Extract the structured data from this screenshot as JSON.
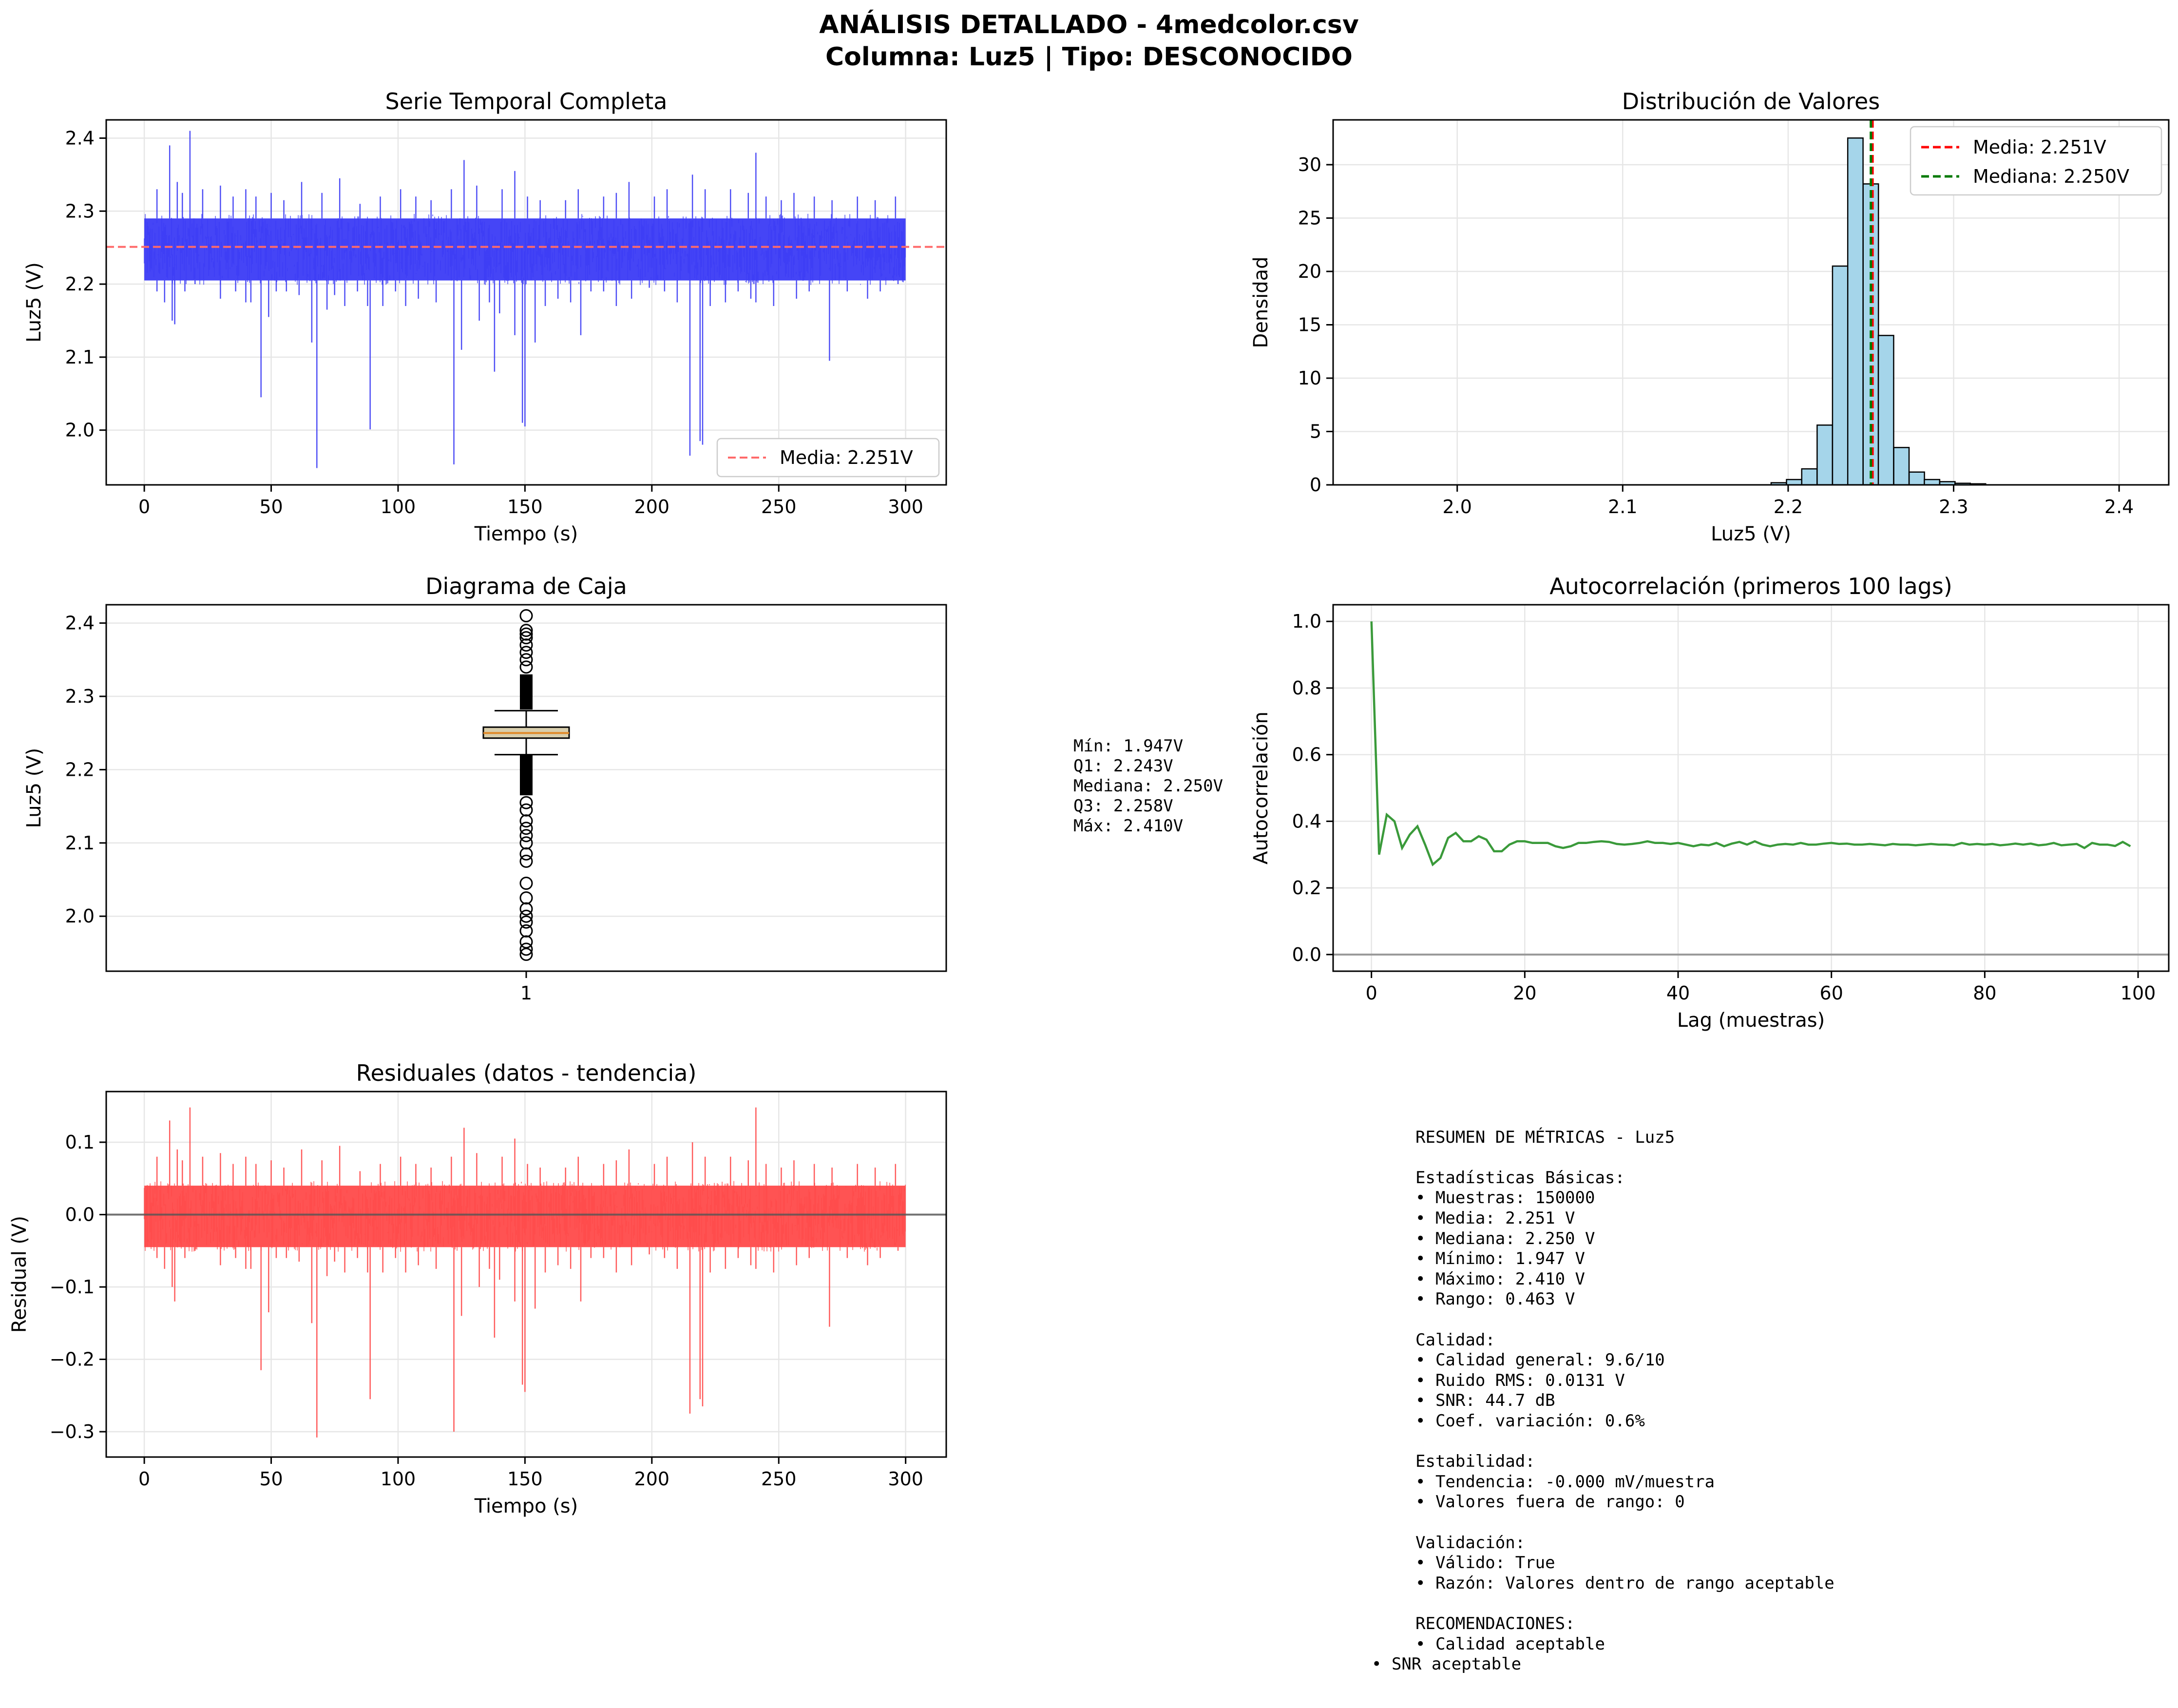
{
  "figure": {
    "title_line1": "ANÁLISIS DETALLADO - 4medcolor.csv",
    "title_line2": "Columna: Luz5 | Tipo: DESCONOCIDO"
  },
  "colors": {
    "series_blue": "#3b3bf5",
    "series_red": "#ff4a4a",
    "acf_green": "#3a9a3a",
    "mean_red": "#ff0000",
    "median_green": "#007a00",
    "hist_fill": "#a5d5ea",
    "box_fill": "#d8ceac",
    "grid": "#e6e6e6"
  },
  "chart_data": [
    {
      "id": "timeseries",
      "type": "line",
      "title": "Serie Temporal Completa",
      "xlabel": "Tiempo (s)",
      "ylabel": "Luz5 (V)",
      "xlim": [
        -15,
        316
      ],
      "ylim": [
        1.925,
        2.425
      ],
      "xticks": [
        0,
        50,
        100,
        150,
        200,
        250,
        300
      ],
      "xtick_labels": [
        "0",
        "50",
        "100",
        "150",
        "200",
        "250",
        "300"
      ],
      "yticks": [
        2.0,
        2.1,
        2.2,
        2.3,
        2.4
      ],
      "ytick_labels": [
        "2.0",
        "2.1",
        "2.2",
        "2.3",
        "2.4"
      ],
      "band": {
        "x_start": 0,
        "x_end": 300,
        "y_low": 2.205,
        "y_high": 2.29
      },
      "spikes_down": [
        [
          2,
          2.205
        ],
        [
          5,
          2.19
        ],
        [
          8,
          2.175
        ],
        [
          11,
          2.15
        ],
        [
          12,
          2.145
        ],
        [
          16,
          2.19
        ],
        [
          20,
          2.2
        ],
        [
          30,
          2.18
        ],
        [
          36,
          2.19
        ],
        [
          40,
          2.175
        ],
        [
          42,
          2.175
        ],
        [
          46,
          2.045
        ],
        [
          49,
          2.155
        ],
        [
          52,
          2.19
        ],
        [
          56,
          2.19
        ],
        [
          61,
          2.185
        ],
        [
          66,
          2.12
        ],
        [
          68,
          1.948
        ],
        [
          72,
          2.165
        ],
        [
          75,
          2.185
        ],
        [
          79,
          2.17
        ],
        [
          84,
          2.19
        ],
        [
          88,
          2.17
        ],
        [
          89,
          2.001
        ],
        [
          94,
          2.17
        ],
        [
          99,
          2.19
        ],
        [
          103,
          2.17
        ],
        [
          108,
          2.18
        ],
        [
          115,
          2.175
        ],
        [
          122,
          1.953
        ],
        [
          125,
          2.11
        ],
        [
          132,
          2.15
        ],
        [
          136,
          2.175
        ],
        [
          138,
          2.08
        ],
        [
          140,
          2.16
        ],
        [
          146,
          2.13
        ],
        [
          149,
          2.01
        ],
        [
          150,
          2.005
        ],
        [
          154,
          2.12
        ],
        [
          158,
          2.17
        ],
        [
          163,
          2.18
        ],
        [
          168,
          2.175
        ],
        [
          172,
          2.13
        ],
        [
          176,
          2.19
        ],
        [
          181,
          2.19
        ],
        [
          186,
          2.17
        ],
        [
          192,
          2.18
        ],
        [
          199,
          2.195
        ],
        [
          205,
          2.19
        ],
        [
          210,
          2.175
        ],
        [
          215,
          1.965
        ],
        [
          219,
          1.985
        ],
        [
          220,
          1.98
        ],
        [
          223,
          2.17
        ],
        [
          229,
          2.175
        ],
        [
          234,
          2.19
        ],
        [
          239,
          2.18
        ],
        [
          241,
          2.175
        ],
        [
          248,
          2.17
        ],
        [
          257,
          2.18
        ],
        [
          262,
          2.19
        ],
        [
          270,
          2.095
        ],
        [
          277,
          2.19
        ],
        [
          285,
          2.18
        ],
        [
          290,
          2.19
        ],
        [
          297,
          2.2
        ]
      ],
      "spikes_up": [
        [
          5,
          2.33
        ],
        [
          10,
          2.39
        ],
        [
          13,
          2.34
        ],
        [
          15,
          2.325
        ],
        [
          18,
          2.41
        ],
        [
          23,
          2.33
        ],
        [
          30,
          2.335
        ],
        [
          35,
          2.32
        ],
        [
          40,
          2.33
        ],
        [
          44,
          2.32
        ],
        [
          50,
          2.325
        ],
        [
          55,
          2.315
        ],
        [
          62,
          2.34
        ],
        [
          70,
          2.325
        ],
        [
          77,
          2.345
        ],
        [
          85,
          2.31
        ],
        [
          93,
          2.32
        ],
        [
          101,
          2.33
        ],
        [
          107,
          2.32
        ],
        [
          113,
          2.315
        ],
        [
          121,
          2.33
        ],
        [
          126,
          2.37
        ],
        [
          131,
          2.335
        ],
        [
          141,
          2.33
        ],
        [
          146,
          2.355
        ],
        [
          151,
          2.32
        ],
        [
          156,
          2.315
        ],
        [
          166,
          2.315
        ],
        [
          171,
          2.33
        ],
        [
          181,
          2.32
        ],
        [
          186,
          2.325
        ],
        [
          191,
          2.34
        ],
        [
          201,
          2.32
        ],
        [
          206,
          2.33
        ],
        [
          216,
          2.35
        ],
        [
          221,
          2.33
        ],
        [
          231,
          2.33
        ],
        [
          238,
          2.325
        ],
        [
          241,
          2.38
        ],
        [
          245,
          2.32
        ],
        [
          251,
          2.315
        ],
        [
          256,
          2.325
        ],
        [
          264,
          2.32
        ],
        [
          271,
          2.315
        ],
        [
          281,
          2.32
        ],
        [
          288,
          2.315
        ],
        [
          296,
          2.32
        ]
      ],
      "mean_line": {
        "y": 2.251,
        "label": "Media: 2.251V"
      },
      "legend": "lower-right"
    },
    {
      "id": "histogram",
      "type": "bar",
      "title": "Distribución de Valores",
      "xlabel": "Luz5 (V)",
      "ylabel": "Densidad",
      "xlim": [
        1.925,
        2.43
      ],
      "ylim": [
        0,
        34.2
      ],
      "xticks": [
        2.0,
        2.1,
        2.2,
        2.3,
        2.4
      ],
      "xtick_labels": [
        "2.0",
        "2.1",
        "2.2",
        "2.3",
        "2.4"
      ],
      "yticks": [
        0,
        5,
        10,
        15,
        20,
        25,
        30
      ],
      "ytick_labels": [
        "0",
        "5",
        "10",
        "15",
        "20",
        "25",
        "30"
      ],
      "bin_width": 0.00926,
      "bin_starts": [
        2.1897,
        2.199,
        2.2082,
        2.2175,
        2.2268,
        2.236,
        2.2453,
        2.2545,
        2.2638,
        2.2731,
        2.2823,
        2.2916,
        2.3008,
        2.3101
      ],
      "densities": [
        0.2,
        0.5,
        1.5,
        5.6,
        20.5,
        32.5,
        28.2,
        14.0,
        3.5,
        1.2,
        0.5,
        0.3,
        0.15,
        0.1
      ],
      "lines": [
        {
          "x": 2.251,
          "label": "Media: 2.251V",
          "color": "#ff0000"
        },
        {
          "x": 2.25,
          "label": "Mediana: 2.250V",
          "color": "#007a00"
        }
      ],
      "legend": "top-right"
    },
    {
      "id": "boxplot",
      "type": "box",
      "title": "Diagrama de Caja",
      "ylabel": "Luz5 (V)",
      "ylim": [
        1.925,
        2.425
      ],
      "yticks": [
        2.0,
        2.1,
        2.2,
        2.3,
        2.4
      ],
      "ytick_labels": [
        "2.0",
        "2.1",
        "2.2",
        "2.3",
        "2.4"
      ],
      "category": "1",
      "q1": 2.243,
      "median": 2.25,
      "q3": 2.258,
      "whisker_low": 2.2205,
      "whisker_high": 2.2805,
      "fliers_low_dense": [
        2.165,
        2.22
      ],
      "fliers_high_dense": [
        2.282,
        2.33
      ],
      "fliers": [
        1.948,
        1.955,
        1.965,
        1.98,
        1.992,
        2.0,
        2.01,
        2.025,
        2.045,
        2.075,
        2.085,
        2.1,
        2.11,
        2.12,
        2.13,
        2.145,
        2.155,
        2.34,
        2.35,
        2.36,
        2.37,
        2.38,
        2.385,
        2.39,
        2.41
      ]
    },
    {
      "id": "autocorrelation",
      "type": "line",
      "title": "Autocorrelación (primeros 100 lags)",
      "xlabel": "Lag (muestras)",
      "ylabel": "Autocorrelación",
      "xlim": [
        -5,
        104
      ],
      "ylim": [
        -0.05,
        1.05
      ],
      "xticks": [
        0,
        20,
        40,
        60,
        80,
        100
      ],
      "xtick_labels": [
        "0",
        "20",
        "40",
        "60",
        "80",
        "100"
      ],
      "yticks": [
        0.0,
        0.2,
        0.4,
        0.6,
        0.8,
        1.0
      ],
      "ytick_labels": [
        "0.0",
        "0.2",
        "0.4",
        "0.6",
        "0.8",
        "1.0"
      ],
      "zero_line": 0,
      "values": [
        1.0,
        0.3,
        0.42,
        0.4,
        0.32,
        0.36,
        0.385,
        0.33,
        0.27,
        0.29,
        0.35,
        0.365,
        0.34,
        0.34,
        0.355,
        0.345,
        0.31,
        0.31,
        0.33,
        0.34,
        0.34,
        0.335,
        0.335,
        0.335,
        0.325,
        0.32,
        0.325,
        0.335,
        0.335,
        0.338,
        0.34,
        0.338,
        0.332,
        0.33,
        0.332,
        0.335,
        0.34,
        0.335,
        0.335,
        0.332,
        0.335,
        0.33,
        0.325,
        0.33,
        0.328,
        0.335,
        0.325,
        0.333,
        0.338,
        0.33,
        0.34,
        0.33,
        0.325,
        0.33,
        0.332,
        0.33,
        0.335,
        0.33,
        0.33,
        0.333,
        0.335,
        0.332,
        0.333,
        0.33,
        0.33,
        0.332,
        0.33,
        0.328,
        0.332,
        0.33,
        0.33,
        0.328,
        0.33,
        0.332,
        0.33,
        0.33,
        0.328,
        0.335,
        0.33,
        0.332,
        0.33,
        0.332,
        0.328,
        0.33,
        0.333,
        0.33,
        0.333,
        0.328,
        0.33,
        0.335,
        0.328,
        0.33,
        0.332,
        0.32,
        0.335,
        0.33,
        0.33,
        0.326,
        0.338,
        0.325
      ]
    },
    {
      "id": "residuals",
      "type": "line",
      "title": "Residuales (datos - tendencia)",
      "xlabel": "Tiempo (s)",
      "ylabel": "Residual (V)",
      "xlim": [
        -15,
        316
      ],
      "ylim": [
        -0.335,
        0.17
      ],
      "xticks": [
        0,
        50,
        100,
        150,
        200,
        250,
        300
      ],
      "xtick_labels": [
        "0",
        "50",
        "100",
        "150",
        "200",
        "250",
        "300"
      ],
      "yticks": [
        -0.3,
        -0.2,
        -0.1,
        0.0,
        0.1
      ],
      "ytick_labels": [
        "−0.3",
        "−0.2",
        "−0.1",
        "0.0",
        "0.1"
      ],
      "band": {
        "x_start": 0,
        "x_end": 300,
        "y_low": -0.045,
        "y_high": 0.04
      },
      "spikes_down": [
        [
          2,
          -0.045
        ],
        [
          5,
          -0.06
        ],
        [
          8,
          -0.075
        ],
        [
          11,
          -0.1
        ],
        [
          12,
          -0.12
        ],
        [
          16,
          -0.06
        ],
        [
          20,
          -0.05
        ],
        [
          30,
          -0.07
        ],
        [
          36,
          -0.06
        ],
        [
          40,
          -0.075
        ],
        [
          42,
          -0.075
        ],
        [
          46,
          -0.215
        ],
        [
          49,
          -0.135
        ],
        [
          52,
          -0.06
        ],
        [
          56,
          -0.06
        ],
        [
          61,
          -0.065
        ],
        [
          66,
          -0.15
        ],
        [
          68,
          -0.308
        ],
        [
          72,
          -0.085
        ],
        [
          75,
          -0.065
        ],
        [
          79,
          -0.08
        ],
        [
          84,
          -0.06
        ],
        [
          88,
          -0.08
        ],
        [
          89,
          -0.255
        ],
        [
          94,
          -0.08
        ],
        [
          99,
          -0.06
        ],
        [
          103,
          -0.08
        ],
        [
          108,
          -0.07
        ],
        [
          115,
          -0.075
        ],
        [
          122,
          -0.3
        ],
        [
          125,
          -0.14
        ],
        [
          132,
          -0.1
        ],
        [
          136,
          -0.075
        ],
        [
          138,
          -0.17
        ],
        [
          140,
          -0.09
        ],
        [
          146,
          -0.12
        ],
        [
          149,
          -0.235
        ],
        [
          150,
          -0.245
        ],
        [
          154,
          -0.13
        ],
        [
          158,
          -0.08
        ],
        [
          163,
          -0.07
        ],
        [
          168,
          -0.075
        ],
        [
          172,
          -0.12
        ],
        [
          176,
          -0.06
        ],
        [
          181,
          -0.06
        ],
        [
          186,
          -0.08
        ],
        [
          192,
          -0.07
        ],
        [
          199,
          -0.055
        ],
        [
          205,
          -0.06
        ],
        [
          210,
          -0.075
        ],
        [
          215,
          -0.275
        ],
        [
          219,
          -0.255
        ],
        [
          220,
          -0.265
        ],
        [
          223,
          -0.08
        ],
        [
          229,
          -0.075
        ],
        [
          234,
          -0.06
        ],
        [
          239,
          -0.07
        ],
        [
          241,
          -0.075
        ],
        [
          248,
          -0.08
        ],
        [
          257,
          -0.07
        ],
        [
          262,
          -0.06
        ],
        [
          270,
          -0.155
        ],
        [
          277,
          -0.06
        ],
        [
          285,
          -0.07
        ],
        [
          290,
          -0.06
        ],
        [
          297,
          -0.05
        ]
      ],
      "spikes_up": [
        [
          5,
          0.08
        ],
        [
          10,
          0.13
        ],
        [
          13,
          0.09
        ],
        [
          15,
          0.075
        ],
        [
          18,
          0.148
        ],
        [
          23,
          0.08
        ],
        [
          30,
          0.085
        ],
        [
          35,
          0.07
        ],
        [
          40,
          0.08
        ],
        [
          44,
          0.07
        ],
        [
          50,
          0.075
        ],
        [
          55,
          0.065
        ],
        [
          62,
          0.09
        ],
        [
          70,
          0.075
        ],
        [
          77,
          0.095
        ],
        [
          85,
          0.06
        ],
        [
          93,
          0.07
        ],
        [
          101,
          0.08
        ],
        [
          107,
          0.07
        ],
        [
          113,
          0.065
        ],
        [
          121,
          0.08
        ],
        [
          126,
          0.12
        ],
        [
          131,
          0.085
        ],
        [
          141,
          0.08
        ],
        [
          146,
          0.105
        ],
        [
          151,
          0.07
        ],
        [
          156,
          0.065
        ],
        [
          166,
          0.065
        ],
        [
          171,
          0.08
        ],
        [
          181,
          0.07
        ],
        [
          186,
          0.075
        ],
        [
          191,
          0.09
        ],
        [
          201,
          0.07
        ],
        [
          206,
          0.08
        ],
        [
          216,
          0.1
        ],
        [
          221,
          0.08
        ],
        [
          231,
          0.08
        ],
        [
          238,
          0.075
        ],
        [
          241,
          0.148
        ],
        [
          245,
          0.07
        ],
        [
          251,
          0.065
        ],
        [
          256,
          0.075
        ],
        [
          264,
          0.07
        ],
        [
          271,
          0.065
        ],
        [
          281,
          0.07
        ],
        [
          288,
          0.065
        ],
        [
          296,
          0.07
        ]
      ],
      "zero_line": 0
    }
  ],
  "box_stats": {
    "line1": "Mín: 1.947V",
    "line2": "Q1: 2.243V",
    "line3": "Mediana: 2.250V",
    "line4": "Q3: 2.258V",
    "line5": "Máx: 2.410V"
  },
  "summary": {
    "heading": "RESUMEN DE MÉTRICAS - Luz5",
    "basic_title": "Estadísticas Básicas:",
    "basic_1": "• Muestras: 150000",
    "basic_2": "• Media: 2.251 V",
    "basic_3": "• Mediana: 2.250 V",
    "basic_4": "• Mínimo: 1.947 V",
    "basic_5": "• Máximo: 2.410 V",
    "basic_6": "• Rango: 0.463 V",
    "quality_title": "Calidad:",
    "quality_1": "• Calidad general: 9.6/10",
    "quality_2": "• Ruido RMS: 0.0131 V",
    "quality_3": "• SNR: 44.7 dB",
    "quality_4": "• Coef. variación: 0.6%",
    "stability_title": "Estabilidad:",
    "stability_1": "• Tendencia: -0.000 mV/muestra",
    "stability_2": "• Valores fuera de rango: 0",
    "validation_title": "Validación:",
    "validation_1": "• Válido: True",
    "validation_2": "• Razón: Valores dentro de rango aceptable",
    "rec_title": "RECOMENDACIONES:",
    "rec_1": "• Calidad aceptable",
    "rec_2": "• SNR aceptable"
  }
}
